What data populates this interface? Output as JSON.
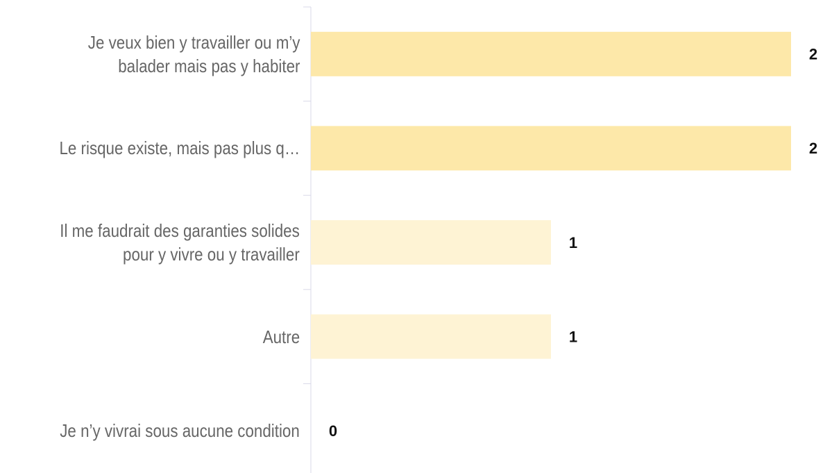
{
  "chart_data": {
    "type": "hbar",
    "categories": [
      "Je veux bien y travailler ou m’y\nbalader mais pas y habiter",
      "Le risque existe, mais pas plus q…",
      "Il me faudrait des garanties solides\npour y vivre ou y travailler",
      "Autre",
      "Je n’y vivrai sous aucune condition"
    ],
    "values": [
      2,
      2,
      1,
      1,
      0
    ],
    "colors": [
      "#fde8a9",
      "#fde8a9",
      "#fef3d4",
      "#fef3d4",
      "#fef3d4"
    ],
    "xlim": [
      0,
      2
    ]
  }
}
